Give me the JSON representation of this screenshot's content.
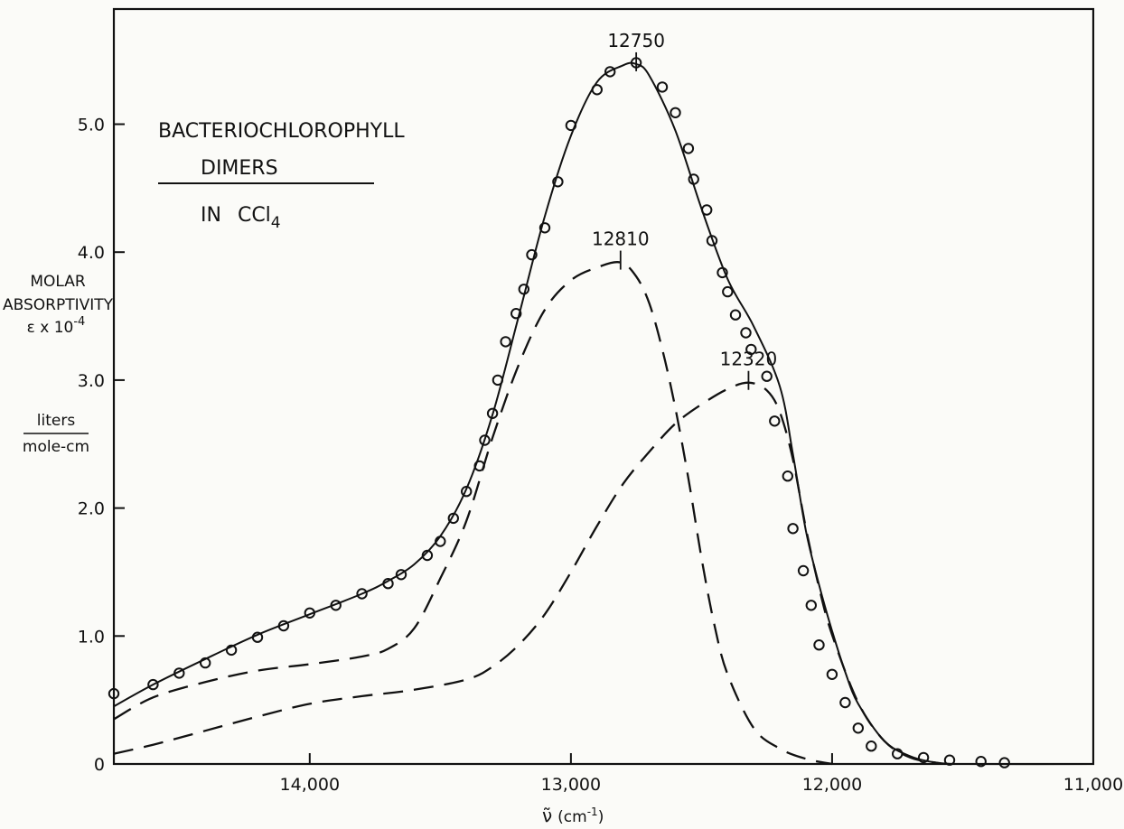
{
  "chart_data": {
    "type": "line",
    "title": "BACTERIOCHLOROPHYLL",
    "subtitle": "DIMERS",
    "solvent_prefix": "IN",
    "solvent_formula": "CCl",
    "solvent_subscript": "4",
    "ylabel": {
      "line1": "MOLAR",
      "line2": "ABSORPTIVITY",
      "line3_main": "ε x 10",
      "line3_exp": "-4",
      "unit_num": "liters",
      "unit_den": "mole-cm"
    },
    "xlabel": {
      "symbol": "ν̃",
      "unit_open": "(cm",
      "unit_exp": "-1",
      "unit_close": ")"
    },
    "xlim": [
      14750,
      11000
    ],
    "ylim": [
      0,
      5.9
    ],
    "x_reversed": true,
    "x_ticks": [
      {
        "value": 14000,
        "label": "14,000"
      },
      {
        "value": 13000,
        "label": "13,000"
      },
      {
        "value": 12000,
        "label": "12,000"
      },
      {
        "value": 11000,
        "label": "11,000"
      }
    ],
    "y_ticks": [
      {
        "value": 0,
        "label": "0"
      },
      {
        "value": 1.0,
        "label": "1.0"
      },
      {
        "value": 2.0,
        "label": "2.0"
      },
      {
        "value": 3.0,
        "label": "3.0"
      },
      {
        "value": 4.0,
        "label": "4.0"
      },
      {
        "value": 5.0,
        "label": "5.0"
      }
    ],
    "grid": false,
    "legend": "none",
    "annotations": [
      {
        "label": "12750",
        "x": 12750,
        "y": 5.47
      },
      {
        "label": "12810",
        "x": 12810,
        "y": 3.92
      },
      {
        "label": "12320",
        "x": 12320,
        "y": 2.98
      }
    ],
    "series": [
      {
        "style": "solid",
        "x": [
          14750,
          14600,
          14400,
          14200,
          14000,
          13800,
          13700,
          13600,
          13500,
          13400,
          13300,
          13200,
          13100,
          13000,
          12900,
          12800,
          12750,
          12700,
          12600,
          12500,
          12400,
          12300,
          12200,
          12150,
          12100,
          12050,
          12000,
          11950,
          11900,
          11800,
          11700,
          11600,
          11500,
          11000
        ],
        "y": [
          0.45,
          0.62,
          0.82,
          1.01,
          1.17,
          1.33,
          1.43,
          1.56,
          1.78,
          2.15,
          2.73,
          3.5,
          4.28,
          4.91,
          5.33,
          5.46,
          5.47,
          5.38,
          4.95,
          4.34,
          3.79,
          3.42,
          2.95,
          2.42,
          1.82,
          1.4,
          1.04,
          0.72,
          0.47,
          0.18,
          0.06,
          0.01,
          0.0,
          0.0
        ]
      },
      {
        "style": "dashed",
        "x": [
          14750,
          14600,
          14400,
          14200,
          14000,
          13800,
          13700,
          13600,
          13500,
          13400,
          13300,
          13200,
          13100,
          13000,
          12900,
          12810,
          12750,
          12700,
          12650,
          12600,
          12550,
          12500,
          12450,
          12400,
          12300,
          12200,
          12100,
          12000
        ],
        "y": [
          0.35,
          0.52,
          0.64,
          0.73,
          0.78,
          0.84,
          0.9,
          1.06,
          1.45,
          1.9,
          2.55,
          3.12,
          3.55,
          3.78,
          3.88,
          3.92,
          3.81,
          3.6,
          3.24,
          2.78,
          2.23,
          1.61,
          1.08,
          0.7,
          0.28,
          0.12,
          0.04,
          0.0
        ]
      },
      {
        "style": "dashed",
        "x": [
          14750,
          14600,
          14400,
          14200,
          14000,
          13800,
          13600,
          13400,
          13300,
          13200,
          13100,
          13000,
          12900,
          12800,
          12700,
          12600,
          12500,
          12400,
          12320,
          12250,
          12200,
          12150,
          12100,
          12050,
          12000,
          11900,
          11800,
          11700,
          11600,
          11550
        ],
        "y": [
          0.08,
          0.15,
          0.26,
          0.37,
          0.47,
          0.53,
          0.58,
          0.66,
          0.76,
          0.93,
          1.17,
          1.5,
          1.86,
          2.19,
          2.44,
          2.66,
          2.81,
          2.93,
          2.98,
          2.92,
          2.75,
          2.38,
          1.84,
          1.38,
          1.01,
          0.48,
          0.18,
          0.05,
          0.01,
          0.0
        ]
      },
      {
        "style": "points",
        "marker": "open-circle",
        "x": [
          14750,
          14600,
          14500,
          14400,
          14300,
          14200,
          14100,
          14000,
          13900,
          13800,
          13700,
          13650,
          13550,
          13500,
          13450,
          13400,
          13350,
          13330,
          13300,
          13280,
          13250,
          13210,
          13180,
          13150,
          13100,
          13050,
          13000,
          12900,
          12850,
          12750,
          12650,
          12600,
          12550,
          12530,
          12480,
          12460,
          12420,
          12400,
          12370,
          12330,
          12310,
          12250,
          12220,
          12170,
          12150,
          12110,
          12080,
          12050,
          12000,
          11950,
          11900,
          11850,
          11750,
          11650,
          11550,
          11430,
          11340
        ],
        "y": [
          0.55,
          0.62,
          0.71,
          0.79,
          0.89,
          0.99,
          1.08,
          1.18,
          1.24,
          1.33,
          1.41,
          1.48,
          1.63,
          1.74,
          1.92,
          2.13,
          2.33,
          2.53,
          2.74,
          3.0,
          3.3,
          3.52,
          3.71,
          3.98,
          4.19,
          4.55,
          4.99,
          5.27,
          5.41,
          5.48,
          5.29,
          5.09,
          4.81,
          4.57,
          4.33,
          4.09,
          3.84,
          3.69,
          3.51,
          3.37,
          3.24,
          3.03,
          2.68,
          2.25,
          1.84,
          1.51,
          1.24,
          0.93,
          0.7,
          0.48,
          0.28,
          0.14,
          0.08,
          0.05,
          0.03,
          0.02,
          0.01
        ]
      }
    ]
  }
}
